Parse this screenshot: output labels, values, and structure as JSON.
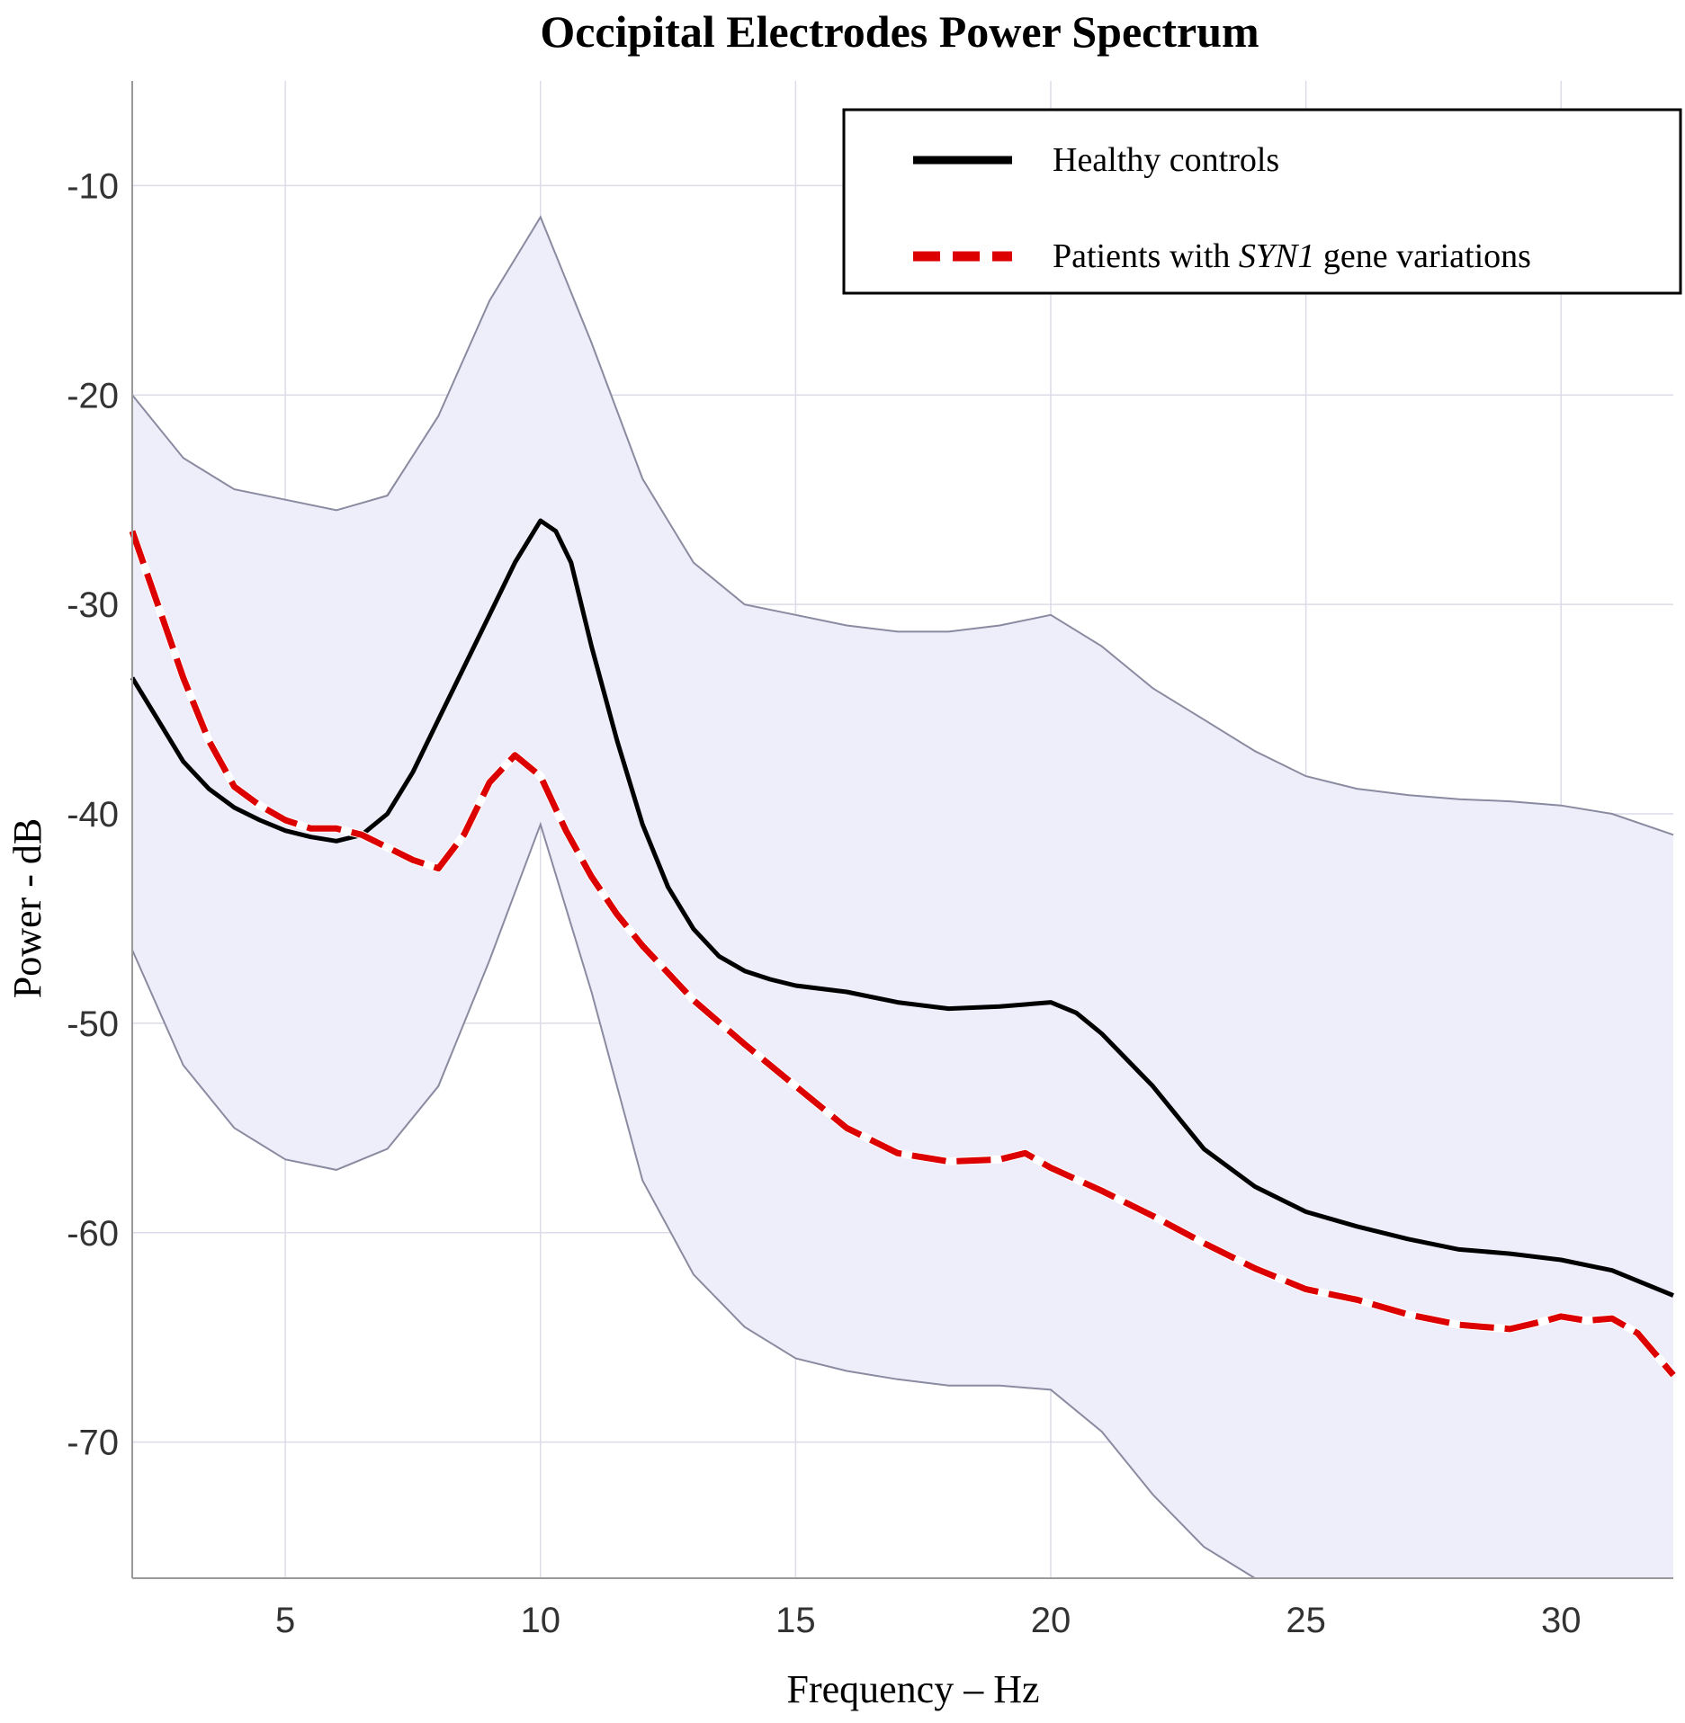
{
  "chart_data": {
    "type": "line",
    "title": "Occipital Electrodes Power Spectrum",
    "xlabel": "Frequency – Hz",
    "ylabel": "Power - dB",
    "xlim": [
      2,
      32.2
    ],
    "ylim": [
      -76.5,
      -5
    ],
    "xticks": [
      5,
      10,
      15,
      20,
      25,
      30
    ],
    "yticks": [
      -10,
      -20,
      -30,
      -40,
      -50,
      -60,
      -70
    ],
    "xtick_labels": [
      "5",
      "10",
      "15",
      "20",
      "25",
      "30"
    ],
    "ytick_labels": [
      "-10",
      "-20",
      "-30",
      "-40",
      "-50",
      "-60",
      "-70"
    ],
    "grid": true,
    "legend_position": "top-right",
    "legend": {
      "healthy_label": "Healthy controls",
      "patients_prefix": "Patients with ",
      "patients_gene": "SYN1",
      "patients_suffix": " gene variations"
    },
    "band": {
      "color": "#eeeefb",
      "upper": {
        "x": [
          2,
          3,
          4,
          5,
          6,
          7,
          8,
          9,
          10,
          11,
          12,
          13,
          14,
          15,
          16,
          17,
          18,
          19,
          20,
          21,
          22,
          23,
          24,
          25,
          26,
          27,
          28,
          29,
          30,
          31,
          32.2
        ],
        "y": [
          -20,
          -23,
          -24.5,
          -25,
          -25.5,
          -24.8,
          -21,
          -15.5,
          -11.5,
          -17.5,
          -24,
          -28,
          -30,
          -30.5,
          -31,
          -31.3,
          -31.3,
          -31,
          -30.5,
          -32,
          -34,
          -35.5,
          -37,
          -38.2,
          -38.8,
          -39.1,
          -39.3,
          -39.4,
          -39.6,
          -40,
          -41
        ]
      },
      "lower": {
        "x": [
          2,
          3,
          4,
          5,
          6,
          7,
          8,
          9,
          10,
          11,
          12,
          13,
          14,
          15,
          16,
          17,
          18,
          19,
          20,
          21,
          22,
          23,
          24
        ],
        "y": [
          -46.5,
          -52,
          -55,
          -56.5,
          -57,
          -56,
          -53,
          -47,
          -40.5,
          -48.5,
          -57.5,
          -62,
          -64.5,
          -66,
          -66.6,
          -67,
          -67.3,
          -67.3,
          -67.5,
          -69.5,
          -72.5,
          -75,
          -76.5
        ]
      }
    },
    "series": [
      {
        "name": "Healthy controls",
        "color": "#000000",
        "x": [
          2,
          2.5,
          3,
          3.5,
          4,
          4.5,
          5,
          5.5,
          6,
          6.5,
          7,
          7.5,
          8,
          8.5,
          9,
          9.5,
          10,
          10.3,
          10.6,
          11,
          11.5,
          12,
          12.5,
          13,
          13.5,
          14,
          14.5,
          15,
          16,
          17,
          18,
          19,
          20,
          20.5,
          21,
          22,
          23,
          24,
          25,
          26,
          27,
          28,
          29,
          30,
          31,
          32.2
        ],
        "y": [
          -33.5,
          -35.5,
          -37.5,
          -38.8,
          -39.7,
          -40.3,
          -40.8,
          -41.1,
          -41.3,
          -41,
          -40,
          -38,
          -35.5,
          -33,
          -30.5,
          -28,
          -26,
          -26.5,
          -28,
          -32,
          -36.5,
          -40.5,
          -43.5,
          -45.5,
          -46.8,
          -47.5,
          -47.9,
          -48.2,
          -48.5,
          -49,
          -49.3,
          -49.2,
          -49,
          -49.5,
          -50.5,
          -53,
          -56,
          -57.8,
          -59,
          -59.7,
          -60.3,
          -60.8,
          -61,
          -61.3,
          -61.8,
          -63
        ]
      },
      {
        "name": "Patients with SYN1 gene variations",
        "color": "#dd0000",
        "x": [
          2,
          2.5,
          3,
          3.5,
          4,
          4.5,
          5,
          5.5,
          6,
          6.5,
          7,
          7.5,
          8,
          8.5,
          9,
          9.5,
          10,
          10.5,
          11,
          11.5,
          12,
          12.5,
          13,
          14,
          15,
          16,
          17,
          18,
          19,
          19.5,
          20,
          21,
          22,
          23,
          24,
          25,
          26,
          27,
          28,
          29,
          29.7,
          30,
          30.5,
          31,
          31.5,
          32.2
        ],
        "y": [
          -26.5,
          -30,
          -33.5,
          -36.5,
          -38.7,
          -39.6,
          -40.3,
          -40.7,
          -40.7,
          -41,
          -41.6,
          -42.2,
          -42.6,
          -41,
          -38.5,
          -37.2,
          -38.2,
          -40.8,
          -43,
          -44.8,
          -46.3,
          -47.6,
          -48.9,
          -51,
          -53,
          -55,
          -56.2,
          -56.6,
          -56.5,
          -56.2,
          -56.9,
          -58,
          -59.2,
          -60.5,
          -61.7,
          -62.7,
          -63.2,
          -63.9,
          -64.4,
          -64.6,
          -64.2,
          -64,
          -64.2,
          -64.1,
          -64.8,
          -66.8
        ]
      }
    ]
  }
}
